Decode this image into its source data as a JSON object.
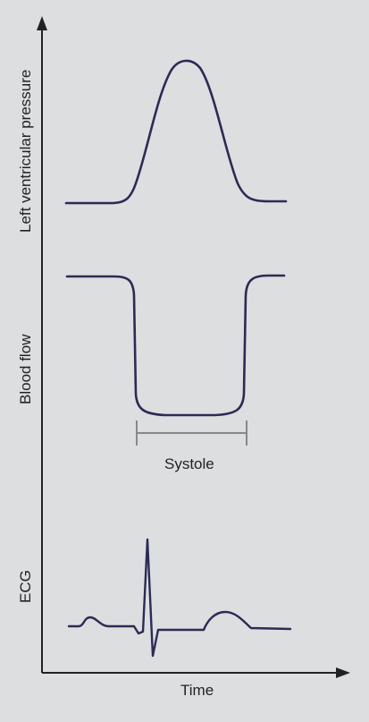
{
  "figure": {
    "y_labels": {
      "pressure": "Left ventricular pressure",
      "blood_flow": "Blood flow",
      "ecg": "ECG"
    },
    "x_label": "Time",
    "systole_label": "Systole",
    "colors": {
      "background": "#dddee0",
      "curve": "#2b2b55",
      "axis": "#222222",
      "bracket": "#888888"
    }
  }
}
